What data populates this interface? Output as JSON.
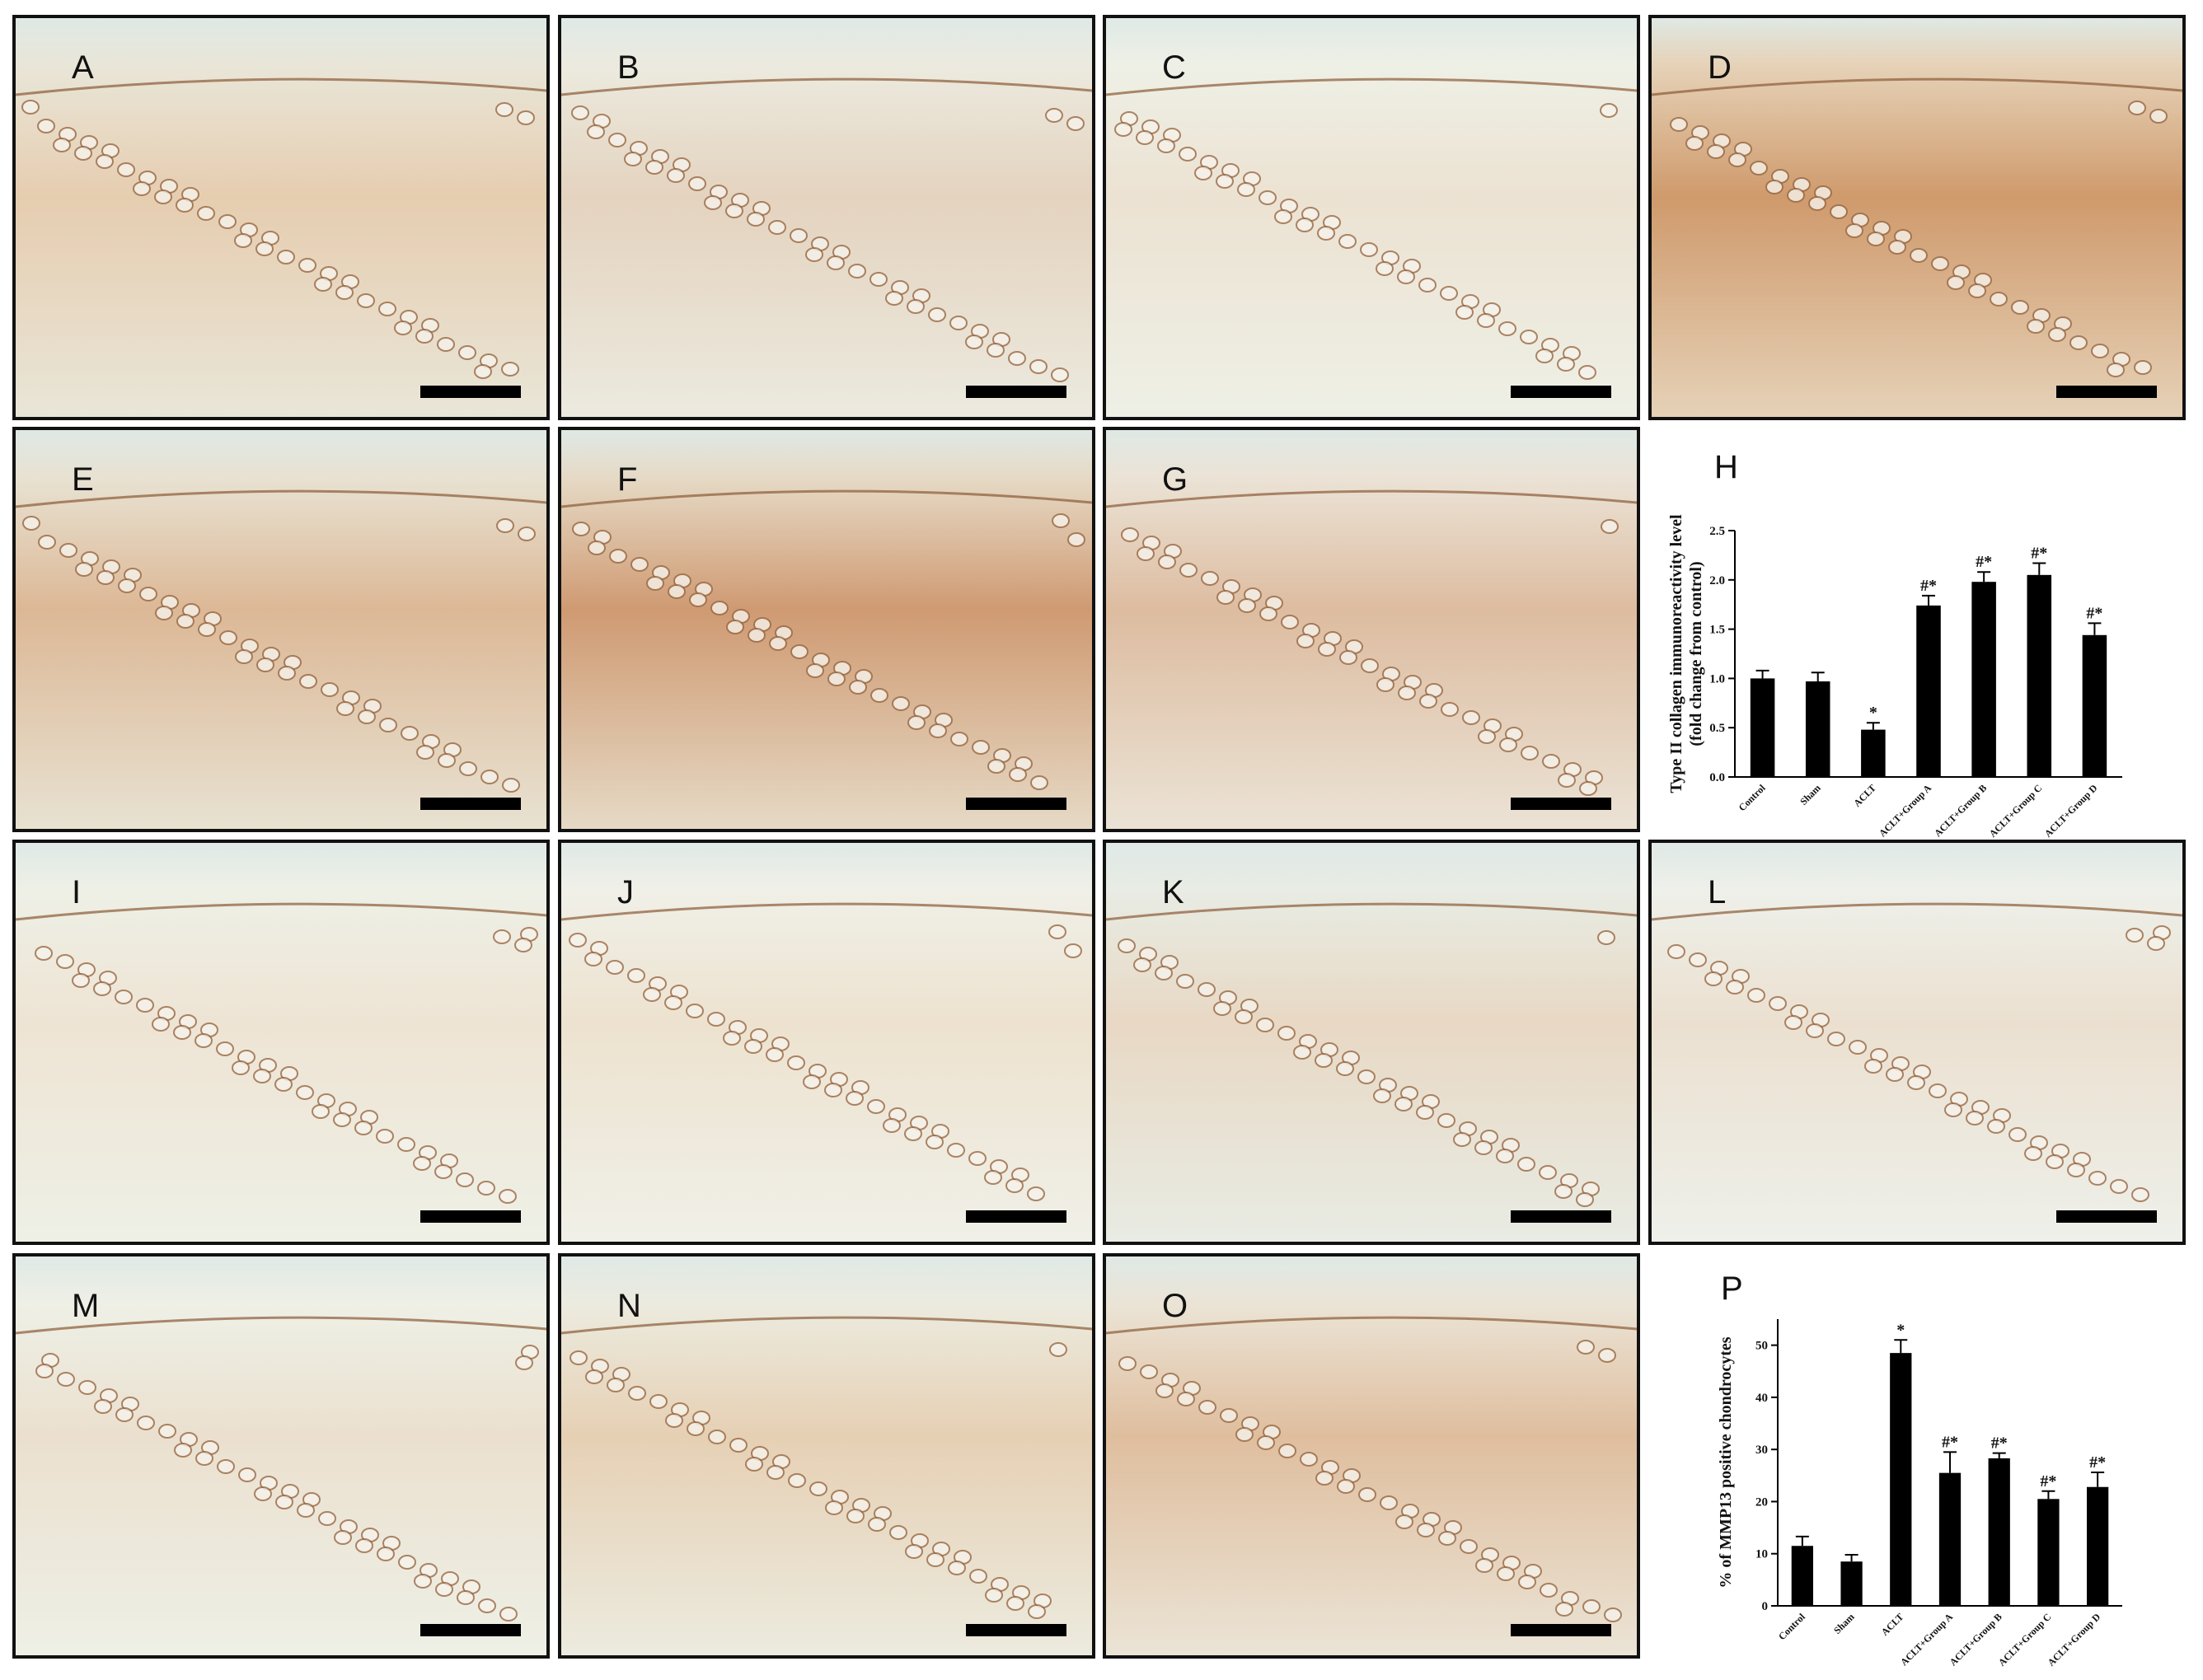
{
  "panels": [
    {
      "label": "A"
    },
    {
      "label": "B"
    },
    {
      "label": "C"
    },
    {
      "label": "D"
    },
    {
      "label": "E"
    },
    {
      "label": "F"
    },
    {
      "label": "G"
    },
    {
      "label": "I"
    },
    {
      "label": "J"
    },
    {
      "label": "K"
    },
    {
      "label": "L"
    },
    {
      "label": "M"
    },
    {
      "label": "N"
    },
    {
      "label": "O"
    }
  ],
  "chart_data": [
    {
      "type": "bar",
      "panel_label": "H",
      "ylabel": [
        "Type II collagen  immunoreactivity level",
        "(fold change from control)"
      ],
      "categories": [
        "Control",
        "Sham",
        "ACLT",
        "ACLT+Group A",
        "ACLT+Group B",
        "ACLT+Group C",
        "ACLT+Group D"
      ],
      "values": [
        1.0,
        0.97,
        0.48,
        1.74,
        1.98,
        2.05,
        1.44
      ],
      "errors": [
        0.08,
        0.09,
        0.07,
        0.1,
        0.1,
        0.12,
        0.12
      ],
      "annotations": [
        null,
        null,
        "*",
        "#*",
        "#*",
        "#*",
        "#*"
      ],
      "color": "#000000",
      "ylim": [
        0,
        2.5
      ],
      "yticks": [
        {
          "value": 0,
          "label": "0.0"
        },
        0.5,
        {
          "value": 1,
          "label": "1.0"
        },
        1.5,
        {
          "value": 2,
          "label": "2.0"
        },
        2.5
      ]
    },
    {
      "type": "bar",
      "panel_label": "P",
      "ylabel": [
        "% of MMP13 positive chondrocytes"
      ],
      "categories": [
        "Control",
        "Sham",
        "ACLT",
        "ACLT+Group A",
        "ACLT+Group B",
        "ACLT+Group C",
        "ACLT+Group D"
      ],
      "values": [
        11.5,
        8.5,
        48.5,
        25.5,
        28.3,
        20.5,
        22.8
      ],
      "errors": [
        1.8,
        1.3,
        2.5,
        4,
        1.0,
        1.5,
        2.8
      ],
      "annotations": [
        null,
        null,
        "*",
        "#*",
        "#*",
        "#*",
        "#*"
      ],
      "color": "#000000",
      "ylim": [
        0,
        55
      ],
      "yticks": [
        0,
        10,
        20,
        30,
        40,
        50
      ]
    }
  ]
}
